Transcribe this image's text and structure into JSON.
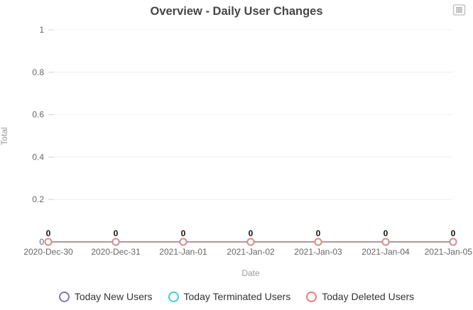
{
  "title": "Overview - Daily User Changes",
  "toolbox": {
    "icon": "data-view-menu-icon"
  },
  "chart_data": {
    "type": "line",
    "title": "Overview - Daily User Changes",
    "xlabel": "Date",
    "ylabel": "Total",
    "categories": [
      "2020-Dec-30",
      "2020-Dec-31",
      "2021-Jan-01",
      "2021-Jan-02",
      "2021-Jan-03",
      "2021-Jan-04",
      "2021-Jan-05"
    ],
    "series": [
      {
        "name": "Today New Users",
        "color": "#767db6",
        "values": [
          0,
          0,
          0,
          0,
          0,
          0,
          0
        ]
      },
      {
        "name": "Today Terminated Users",
        "color": "#3ed3c3",
        "values": [
          0,
          0,
          0,
          0,
          0,
          0,
          0
        ]
      },
      {
        "name": "Today Deleted Users",
        "color": "#e87c7b",
        "values": [
          0,
          0,
          0,
          0,
          0,
          0,
          0
        ]
      }
    ],
    "ylim": [
      0,
      1
    ],
    "yticks": [
      0,
      0.2,
      0.4,
      0.6,
      0.8,
      1
    ],
    "ytick_labels": [
      "0",
      "0.2",
      "0.4",
      "0.6",
      "0.8",
      "1"
    ],
    "grid": true,
    "point_labels": [
      "0",
      "0",
      "0",
      "0",
      "0",
      "0",
      "0"
    ],
    "legend_position": "bottom"
  },
  "colors": {
    "title": "#464646",
    "axis_tick_label": "#666666",
    "axis_name": "#999999",
    "grid_line": "#f0f0f0",
    "axis_tick_mark": "#d4d4d4",
    "point_label": "#111111",
    "legend_text": "#333333",
    "toolbox_border": "#c6c6c6",
    "toolbox_lines": "#999999"
  }
}
